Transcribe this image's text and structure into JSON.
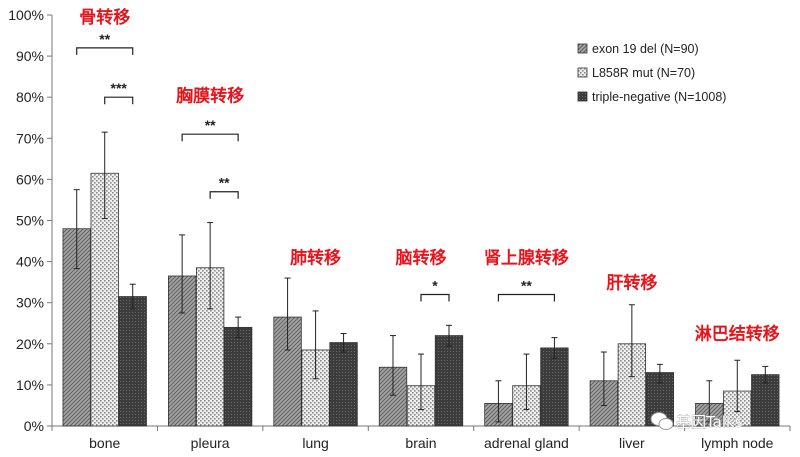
{
  "chart_data": {
    "type": "bar",
    "categories": [
      "bone",
      "pleura",
      "lung",
      "brain",
      "adrenal gland",
      "liver",
      "lymph node"
    ],
    "series": [
      {
        "name": "exon 19 del (N=90)",
        "values": [
          48,
          36.5,
          26.5,
          14.3,
          5.5,
          11,
          5.5
        ],
        "error": [
          [
            38.3,
            57.5
          ],
          [
            27.5,
            46.5
          ],
          [
            18.5,
            36
          ],
          [
            7.5,
            22
          ],
          [
            1,
            11
          ],
          [
            5,
            18
          ],
          [
            1,
            11
          ]
        ],
        "pattern": "diagonal",
        "color": "#9a9a9a"
      },
      {
        "name": "L858R mut (N=70)",
        "values": [
          61.5,
          38.5,
          18.5,
          9.8,
          9.8,
          20,
          8.5
        ],
        "error": [
          [
            50.5,
            71.5
          ],
          [
            28.5,
            49.5
          ],
          [
            11.5,
            28
          ],
          [
            4,
            17.5
          ],
          [
            4,
            17.5
          ],
          [
            12,
            29.5
          ],
          [
            3.5,
            16
          ]
        ],
        "pattern": "dots",
        "color": "#e6e6e6"
      },
      {
        "name": "triple-negative (N=1008)",
        "values": [
          31.5,
          24,
          20.3,
          22,
          19,
          13,
          12.5
        ],
        "error": [
          [
            28.5,
            34.5
          ],
          [
            21.5,
            26.5
          ],
          [
            18,
            22.5
          ],
          [
            19.5,
            24.5
          ],
          [
            16.5,
            21.5
          ],
          [
            10.5,
            15
          ],
          [
            10.5,
            14.5
          ]
        ],
        "pattern": "dark",
        "color": "#3a3a3a"
      }
    ],
    "ylim": [
      0,
      100
    ],
    "yticks": [
      "0%",
      "10%",
      "20%",
      "30%",
      "40%",
      "50%",
      "60%",
      "70%",
      "80%",
      "90%",
      "100%"
    ],
    "grid": false,
    "legend": "top-right",
    "significance": [
      {
        "category": 0,
        "from": 0,
        "to": 2,
        "level": 92,
        "label": "**"
      },
      {
        "category": 0,
        "from": 1,
        "to": 2,
        "level": 80,
        "label": "***"
      },
      {
        "category": 1,
        "from": 0,
        "to": 2,
        "level": 71,
        "label": "**"
      },
      {
        "category": 1,
        "from": 1,
        "to": 2,
        "level": 57,
        "label": "**"
      },
      {
        "category": 3,
        "from": 1,
        "to": 2,
        "level": 32,
        "label": "*"
      },
      {
        "category": 4,
        "from": 0,
        "to": 2,
        "level": 32,
        "label": "**"
      }
    ],
    "annotations": [
      {
        "category": 0,
        "level": 98,
        "text": "骨转移"
      },
      {
        "category": 1,
        "level": 79,
        "text": "胸膜转移"
      },
      {
        "category": 2,
        "level": 39.5,
        "text": "肺转移"
      },
      {
        "category": 3,
        "level": 39.5,
        "text": "脑转移"
      },
      {
        "category": 4,
        "level": 39.5,
        "text": "肾上腺转移"
      },
      {
        "category": 5,
        "level": 33.5,
        "text": "肝转移"
      },
      {
        "category": 6,
        "level": 21,
        "text": "淋巴结转移"
      }
    ]
  },
  "watermark": {
    "text": "基因Talks",
    "icon": "wechat-icon"
  }
}
